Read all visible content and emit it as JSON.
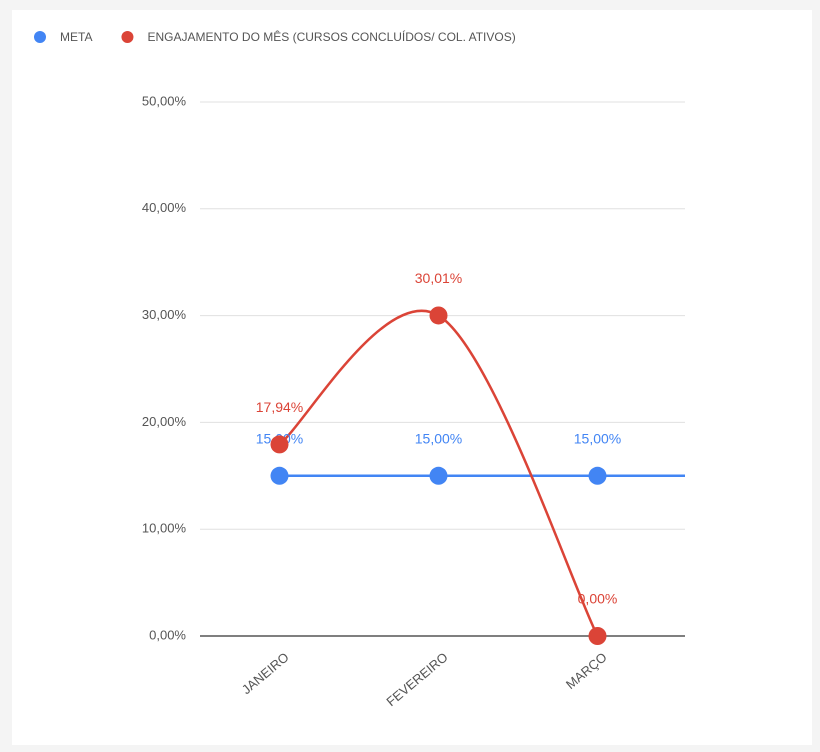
{
  "chart_data": {
    "type": "line",
    "categories": [
      "JANEIRO",
      "FEVEREIRO",
      "MARÇO"
    ],
    "series": [
      {
        "name": "META",
        "color": "#4285f4",
        "values": [
          15,
          15,
          15
        ],
        "value_labels": [
          "15,00%",
          "15,00%",
          "15,00%"
        ]
      },
      {
        "name": "ENGAJAMENTO DO MÊS (CURSOS CONCLUÍDOS/ COL. ATIVOS)",
        "color": "#db4437",
        "values": [
          17.94,
          30.01,
          0
        ],
        "value_labels": [
          "17,94%",
          "30,01%",
          "0,00%"
        ]
      }
    ],
    "ylim": [
      0,
      50
    ],
    "yticks": [
      {
        "value": 0,
        "label": "0,00%"
      },
      {
        "value": 10,
        "label": "10,00%"
      },
      {
        "value": 20,
        "label": "20,00%"
      },
      {
        "value": 30,
        "label": "30,00%"
      },
      {
        "value": 40,
        "label": "40,00%"
      },
      {
        "value": 50,
        "label": "50,00%"
      }
    ],
    "grid": true,
    "legend": "top"
  }
}
